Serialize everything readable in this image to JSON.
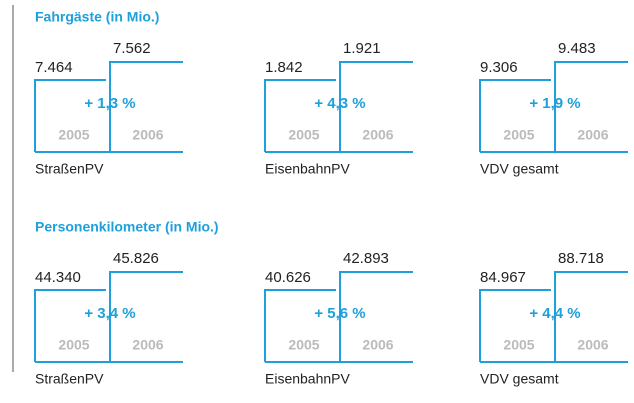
{
  "sections": [
    {
      "title": "Fahrgäste (in Mio.)",
      "items": [
        {
          "label": "StraßenPV",
          "year_from": "2005",
          "year_to": "2006",
          "value_from": "7.464",
          "value_to": "7.562",
          "change": "+ 1,3 %"
        },
        {
          "label": "EisenbahnPV",
          "year_from": "2005",
          "year_to": "2006",
          "value_from": "1.842",
          "value_to": "1.921",
          "change": "+ 4,3 %"
        },
        {
          "label": "VDV gesamt",
          "year_from": "2005",
          "year_to": "2006",
          "value_from": "9.306",
          "value_to": "9.483",
          "change": "+ 1,9 %"
        }
      ]
    },
    {
      "title": "Personenkilometer (in Mio.)",
      "items": [
        {
          "label": "StraßenPV",
          "year_from": "2005",
          "year_to": "2006",
          "value_from": "44.340",
          "value_to": "45.826",
          "change": "+ 3,4 %"
        },
        {
          "label": "EisenbahnPV",
          "year_from": "2005",
          "year_to": "2006",
          "value_from": "40.626",
          "value_to": "42.893",
          "change": "+ 5,6 %"
        },
        {
          "label": "VDV gesamt",
          "year_from": "2005",
          "year_to": "2006",
          "value_from": "84.967",
          "value_to": "88.718",
          "change": "+ 4,4 %"
        }
      ]
    }
  ]
}
